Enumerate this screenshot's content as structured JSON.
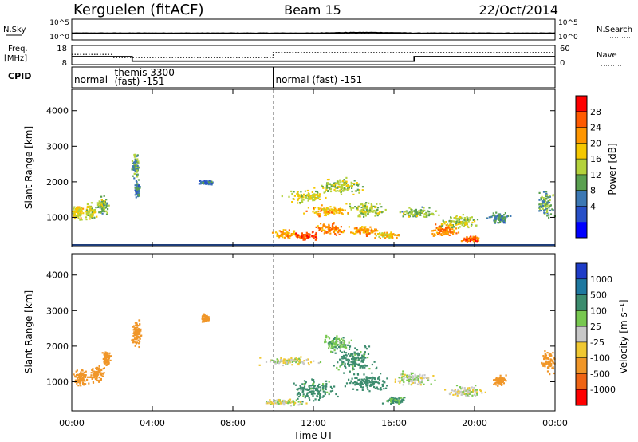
{
  "header": {
    "station": "Kerguelen (fitACF)",
    "beam": "Beam 15",
    "date": "22/Oct/2014"
  },
  "noise_panel": {
    "left_label": "N.Sky",
    "right_label": "N.Search",
    "left_ticks": [
      "10^5",
      "10^0"
    ],
    "right_ticks": [
      "10^5",
      "10^0"
    ]
  },
  "freq_panel": {
    "left_label_line1": "Freq.",
    "left_label_line2": "[MHz]",
    "right_label": "Nave",
    "left_ticks": [
      "18",
      "8"
    ],
    "right_ticks": [
      "60",
      "0"
    ]
  },
  "cpid_panel": {
    "label": "CPID",
    "segments": [
      {
        "line1": "normal",
        "line2": "",
        "start_hour": 0,
        "end_hour": 2
      },
      {
        "line1": "themis 3300",
        "line2": "(fast) -151",
        "start_hour": 2,
        "end_hour": 10
      },
      {
        "line1": "normal (fast) -151",
        "line2": "",
        "start_hour": 10,
        "end_hour": 24
      }
    ]
  },
  "power_colorbar": {
    "title": "Power [dB]",
    "ticks": [
      "28",
      "24",
      "20",
      "16",
      "12",
      "8",
      "4"
    ],
    "colors": [
      "#ff0000",
      "#ff5a00",
      "#ff9600",
      "#f5c800",
      "#b4d23c",
      "#5aa050",
      "#3c78b4",
      "#2850c8",
      "#0000ff"
    ]
  },
  "velocity_colorbar": {
    "title": "Velocity [m s⁻¹]",
    "ticks": [
      "1000",
      "500",
      "100",
      "25",
      "-25",
      "-100",
      "-500",
      "-1000"
    ],
    "colors": [
      "#1e3cc8",
      "#1e78a0",
      "#3c8c6e",
      "#78c850",
      "#c8c8c8",
      "#f0c832",
      "#f09628",
      "#f06414",
      "#ff0000"
    ]
  },
  "axes": {
    "ylabel": "Slant Range [km]",
    "xlabel": "Time UT"
  },
  "chart_data": {
    "type": "heatmap",
    "title": "Kerguelen (fitACF) Beam 15 22/Oct/2014",
    "x": {
      "label": "Time UT",
      "range_hours": [
        0,
        24
      ],
      "tick_hours": [
        0,
        4,
        8,
        12,
        16,
        20,
        24
      ],
      "tick_labels": [
        "00:00",
        "04:00",
        "08:00",
        "12:00",
        "16:00",
        "20:00",
        "00:00"
      ]
    },
    "y": {
      "label": "Slant Range [km]",
      "range_km": [
        180,
        4600
      ],
      "ticks": [
        1000,
        2000,
        3000,
        4000
      ]
    },
    "freq_mhz": [
      {
        "start_hour": 0,
        "end_hour": 3,
        "value": 12.2
      },
      {
        "start_hour": 3,
        "end_hour": 17,
        "value": 9.8
      },
      {
        "start_hour": 17,
        "end_hour": 24,
        "value": 12.2
      }
    ],
    "nave": [
      {
        "start_hour": 0,
        "end_hour": 2,
        "value": 32
      },
      {
        "start_hour": 2,
        "end_hour": 10,
        "value": 22
      },
      {
        "start_hour": 10,
        "end_hour": 24,
        "value": 38
      }
    ],
    "noise_sky_level": 1.6,
    "mode_change_hours": [
      2,
      10
    ],
    "power_blobs": [
      {
        "t": 0.3,
        "r": 1150,
        "dt": 0.25,
        "dr": 200,
        "p": 18
      },
      {
        "t": 0.9,
        "r": 1200,
        "dt": 0.3,
        "dr": 220,
        "p": 16
      },
      {
        "t": 1.5,
        "r": 1350,
        "dt": 0.3,
        "dr": 250,
        "p": 14
      },
      {
        "t": 3.1,
        "r": 2500,
        "dt": 0.2,
        "dr": 400,
        "p": 12
      },
      {
        "t": 3.2,
        "r": 1800,
        "dt": 0.15,
        "dr": 250,
        "p": 10
      },
      {
        "t": 6.6,
        "r": 2000,
        "dt": 0.4,
        "dr": 60,
        "p": 8
      },
      {
        "t": 10.6,
        "r": 550,
        "dt": 0.6,
        "dr": 110,
        "p": 22
      },
      {
        "t": 11.6,
        "r": 500,
        "dt": 0.6,
        "dr": 100,
        "p": 27
      },
      {
        "t": 12.8,
        "r": 700,
        "dt": 0.8,
        "dr": 160,
        "p": 24
      },
      {
        "t": 14.5,
        "r": 650,
        "dt": 0.7,
        "dr": 130,
        "p": 23
      },
      {
        "t": 15.6,
        "r": 520,
        "dt": 0.6,
        "dr": 90,
        "p": 20
      },
      {
        "t": 18.5,
        "r": 650,
        "dt": 0.7,
        "dr": 150,
        "p": 24
      },
      {
        "t": 19.8,
        "r": 420,
        "dt": 0.5,
        "dr": 90,
        "p": 26
      },
      {
        "t": 11.6,
        "r": 1600,
        "dt": 1.0,
        "dr": 180,
        "p": 17
      },
      {
        "t": 13.3,
        "r": 1900,
        "dt": 1.1,
        "dr": 250,
        "p": 16
      },
      {
        "t": 14.6,
        "r": 1250,
        "dt": 0.9,
        "dr": 220,
        "p": 15
      },
      {
        "t": 12.7,
        "r": 1200,
        "dt": 1.0,
        "dr": 150,
        "p": 21
      },
      {
        "t": 17.2,
        "r": 1150,
        "dt": 1.0,
        "dr": 140,
        "p": 14
      },
      {
        "t": 19.2,
        "r": 900,
        "dt": 0.9,
        "dr": 200,
        "p": 16
      },
      {
        "t": 23.5,
        "r": 1400,
        "dt": 0.4,
        "dr": 350,
        "p": 12
      },
      {
        "t": 21.2,
        "r": 1000,
        "dt": 0.5,
        "dr": 180,
        "p": 10
      }
    ],
    "velocity_blobs": [
      {
        "t": 0.4,
        "r": 1150,
        "dt": 0.35,
        "dr": 230,
        "v": -300
      },
      {
        "t": 1.2,
        "r": 1250,
        "dt": 0.35,
        "dr": 230,
        "v": -250
      },
      {
        "t": 1.7,
        "r": 1700,
        "dt": 0.2,
        "dr": 250,
        "v": -200
      },
      {
        "t": 3.2,
        "r": 2400,
        "dt": 0.25,
        "dr": 450,
        "v": -300
      },
      {
        "t": 6.6,
        "r": 2800,
        "dt": 0.2,
        "dr": 100,
        "v": -200
      },
      {
        "t": 10.8,
        "r": 1600,
        "dt": 1.5,
        "dr": 120,
        "v": 0
      },
      {
        "t": 12.0,
        "r": 800,
        "dt": 1.1,
        "dr": 300,
        "v": 150
      },
      {
        "t": 14.0,
        "r": 1600,
        "dt": 1.1,
        "dr": 350,
        "v": 150
      },
      {
        "t": 14.7,
        "r": 1000,
        "dt": 1.0,
        "dr": 250,
        "v": 200
      },
      {
        "t": 13.1,
        "r": 2100,
        "dt": 0.7,
        "dr": 220,
        "v": 80
      },
      {
        "t": 17.0,
        "r": 1100,
        "dt": 1.0,
        "dr": 200,
        "v": 10
      },
      {
        "t": 19.5,
        "r": 750,
        "dt": 1.0,
        "dr": 150,
        "v": 0
      },
      {
        "t": 10.5,
        "r": 450,
        "dt": 1.0,
        "dr": 90,
        "v": 0
      },
      {
        "t": 16.0,
        "r": 500,
        "dt": 0.6,
        "dr": 100,
        "v": 120
      },
      {
        "t": 23.6,
        "r": 1600,
        "dt": 0.35,
        "dr": 300,
        "v": -300
      },
      {
        "t": 21.2,
        "r": 1050,
        "dt": 0.3,
        "dr": 150,
        "v": -300
      }
    ]
  }
}
